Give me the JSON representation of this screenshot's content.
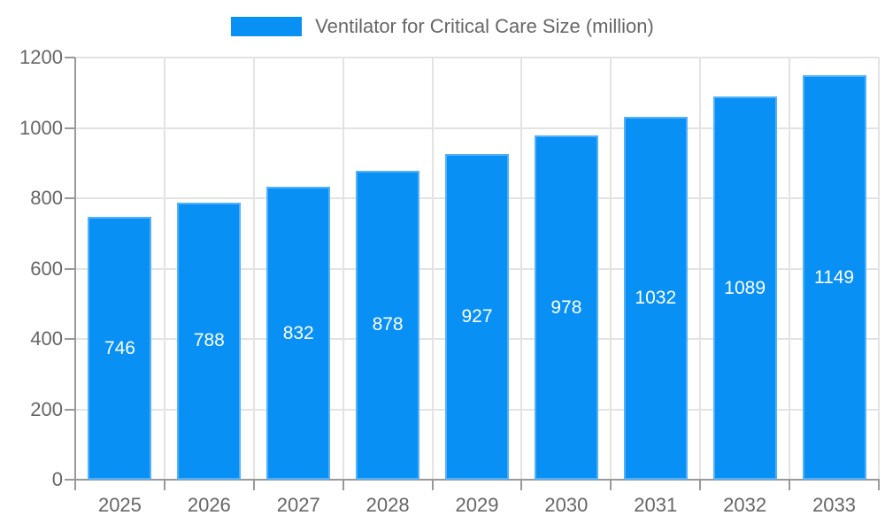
{
  "legend": {
    "label": "Ventilator for Critical Care Size (million)"
  },
  "chart_data": {
    "type": "bar",
    "title": "Ventilator for Critical Care Size (million)",
    "categories": [
      "2025",
      "2026",
      "2027",
      "2028",
      "2029",
      "2030",
      "2031",
      "2032",
      "2033"
    ],
    "values": [
      746,
      788,
      832,
      878,
      927,
      978,
      1032,
      1089,
      1149
    ],
    "series": [
      {
        "name": "Ventilator for Critical Care Size (million)",
        "values": [
          746,
          788,
          832,
          878,
          927,
          978,
          1032,
          1089,
          1149
        ]
      }
    ],
    "xlabel": "",
    "ylabel": "",
    "ylim": [
      0,
      1200
    ],
    "y_ticks": [
      0,
      200,
      400,
      600,
      800,
      1000,
      1200
    ],
    "grid": true,
    "legend_position": "top-center",
    "bar_labels_inside": true,
    "colors": {
      "bar": "#0890F5",
      "bar_label": "#FFFFFF",
      "axis_text": "#666666",
      "grid": "#E3E3E3",
      "axis_line": "#999999",
      "background": "#FFFFFF"
    }
  }
}
